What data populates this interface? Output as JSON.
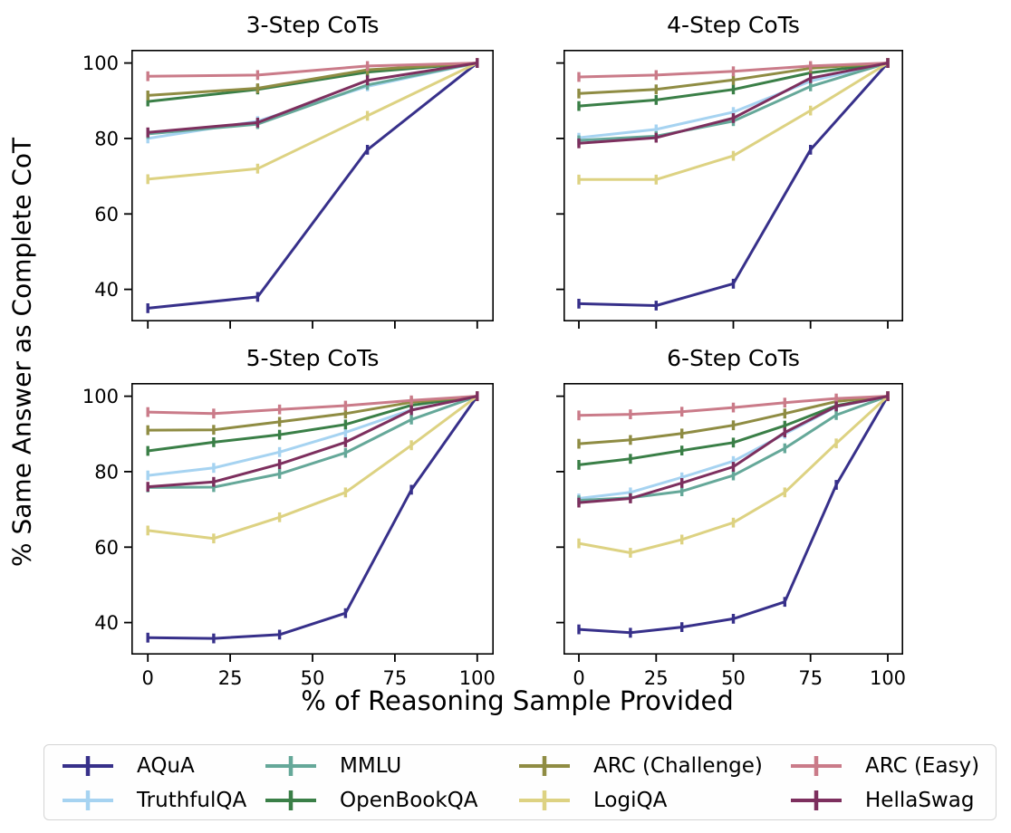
{
  "figure": {
    "ylabel": "% Same Answer as Complete CoT",
    "xlabel": "% of Reasoning Sample Provided",
    "background": "#ffffff",
    "text_color": "#000000",
    "spine_color": "#000000",
    "legend_border_color": "#d4d4d4"
  },
  "legend": {
    "position": "bottom",
    "entries": [
      {
        "label": "AQuA",
        "color": "#37308a"
      },
      {
        "label": "TruthfulQA",
        "color": "#a6d3f1"
      },
      {
        "label": "MMLU",
        "color": "#65a899"
      },
      {
        "label": "OpenBookQA",
        "color": "#3a7f47"
      },
      {
        "label": "ARC (Challenge)",
        "color": "#8f8c43"
      },
      {
        "label": "LogiQA",
        "color": "#ddd282"
      },
      {
        "label": "ARC (Easy)",
        "color": "#ca7b89"
      },
      {
        "label": "HellaSwag",
        "color": "#7d2f5e"
      }
    ],
    "columns": [
      [
        0,
        1
      ],
      [
        2,
        3
      ],
      [
        4,
        5
      ],
      [
        6,
        7
      ]
    ]
  },
  "chart_data": [
    {
      "type": "line",
      "title": "3-Step CoTs",
      "xlabel_shared": "% of Reasoning Sample Provided",
      "ylabel_shared": "% Same Answer as Complete CoT",
      "x": [
        0,
        33.33,
        66.67,
        100
      ],
      "xticks": [
        0,
        25,
        50,
        75,
        100
      ],
      "yticks": [
        40,
        60,
        80,
        100
      ],
      "xlim": [
        -5,
        105
      ],
      "ylim": [
        31.5,
        103.5
      ],
      "grid": false,
      "error_bar": 1.3,
      "series": [
        {
          "name": "AQuA",
          "values": [
            35.0,
            38.0,
            77.0,
            100
          ]
        },
        {
          "name": "TruthfulQA",
          "values": [
            80.0,
            84.6,
            93.8,
            100
          ]
        },
        {
          "name": "MMLU",
          "values": [
            81.2,
            83.8,
            94.2,
            100
          ]
        },
        {
          "name": "OpenBookQA",
          "values": [
            89.8,
            93.0,
            97.6,
            100
          ]
        },
        {
          "name": "ARC (Challenge)",
          "values": [
            91.4,
            93.3,
            98.2,
            100
          ]
        },
        {
          "name": "LogiQA",
          "values": [
            69.2,
            72.0,
            86.0,
            100
          ]
        },
        {
          "name": "ARC (Easy)",
          "values": [
            96.5,
            96.8,
            99.2,
            100
          ]
        },
        {
          "name": "HellaSwag",
          "values": [
            81.6,
            84.2,
            95.4,
            100
          ]
        }
      ]
    },
    {
      "type": "line",
      "title": "4-Step CoTs",
      "x": [
        0,
        25,
        50,
        75,
        100
      ],
      "xticks": [
        0,
        25,
        50,
        75,
        100
      ],
      "yticks": [
        40,
        60,
        80,
        100
      ],
      "xlim": [
        -5,
        105
      ],
      "ylim": [
        31.5,
        103.5
      ],
      "grid": false,
      "error_bar": 1.3,
      "series": [
        {
          "name": "AQuA",
          "values": [
            36.2,
            35.7,
            41.5,
            77.0,
            100
          ]
        },
        {
          "name": "TruthfulQA",
          "values": [
            80.2,
            82.4,
            87.0,
            95.2,
            100
          ]
        },
        {
          "name": "MMLU",
          "values": [
            79.5,
            80.6,
            84.6,
            93.8,
            100
          ]
        },
        {
          "name": "OpenBookQA",
          "values": [
            88.6,
            90.2,
            93.0,
            97.4,
            100
          ]
        },
        {
          "name": "ARC (Challenge)",
          "values": [
            91.9,
            93.0,
            95.5,
            98.6,
            100
          ]
        },
        {
          "name": "LogiQA",
          "values": [
            69.1,
            69.1,
            75.4,
            87.4,
            100
          ]
        },
        {
          "name": "ARC (Easy)",
          "values": [
            96.3,
            96.8,
            97.8,
            99.2,
            100
          ]
        },
        {
          "name": "HellaSwag",
          "values": [
            78.7,
            80.2,
            85.4,
            96.0,
            100
          ]
        }
      ]
    },
    {
      "type": "line",
      "title": "5-Step CoTs",
      "x": [
        0,
        20,
        40,
        60,
        80,
        100
      ],
      "xticks": [
        0,
        25,
        50,
        75,
        100
      ],
      "yticks": [
        40,
        60,
        80,
        100
      ],
      "xlim": [
        -5,
        105
      ],
      "ylim": [
        31.5,
        103.5
      ],
      "grid": false,
      "error_bar": 1.3,
      "series": [
        {
          "name": "AQuA",
          "values": [
            36.0,
            35.8,
            36.8,
            42.5,
            75.2,
            100
          ]
        },
        {
          "name": "TruthfulQA",
          "values": [
            79.0,
            81.0,
            85.2,
            90.4,
            96.4,
            100
          ]
        },
        {
          "name": "MMLU",
          "values": [
            75.8,
            75.9,
            79.4,
            85.0,
            93.8,
            100
          ]
        },
        {
          "name": "OpenBookQA",
          "values": [
            85.5,
            87.8,
            89.8,
            92.5,
            97.6,
            100
          ]
        },
        {
          "name": "ARC (Challenge)",
          "values": [
            91.0,
            91.1,
            93.2,
            95.4,
            98.4,
            100
          ]
        },
        {
          "name": "LogiQA",
          "values": [
            64.4,
            62.3,
            67.9,
            74.5,
            87.0,
            100
          ]
        },
        {
          "name": "ARC (Easy)",
          "values": [
            95.8,
            95.4,
            96.5,
            97.5,
            98.9,
            100
          ]
        },
        {
          "name": "HellaSwag",
          "values": [
            76.0,
            77.3,
            82.0,
            87.8,
            96.3,
            100
          ]
        }
      ]
    },
    {
      "type": "line",
      "title": "6-Step CoTs",
      "x": [
        0,
        16.67,
        33.33,
        50,
        66.67,
        83.33,
        100
      ],
      "xticks": [
        0,
        25,
        50,
        75,
        100
      ],
      "yticks": [
        40,
        60,
        80,
        100
      ],
      "xlim": [
        -5,
        105
      ],
      "ylim": [
        31.5,
        103.5
      ],
      "grid": false,
      "error_bar": 1.3,
      "series": [
        {
          "name": "AQuA",
          "values": [
            38.2,
            37.3,
            38.8,
            41.0,
            45.5,
            76.5,
            100
          ]
        },
        {
          "name": "TruthfulQA",
          "values": [
            72.9,
            74.5,
            78.5,
            82.8,
            90.0,
            97.2,
            100
          ]
        },
        {
          "name": "MMLU",
          "values": [
            72.4,
            73.1,
            74.8,
            79.0,
            86.2,
            95.0,
            100
          ]
        },
        {
          "name": "OpenBookQA",
          "values": [
            81.8,
            83.4,
            85.6,
            87.7,
            92.2,
            97.5,
            100
          ]
        },
        {
          "name": "ARC (Challenge)",
          "values": [
            87.4,
            88.4,
            90.1,
            92.3,
            95.4,
            98.6,
            100
          ]
        },
        {
          "name": "LogiQA",
          "values": [
            61.0,
            58.5,
            62.0,
            66.5,
            74.5,
            87.5,
            100
          ]
        },
        {
          "name": "ARC (Easy)",
          "values": [
            94.9,
            95.2,
            95.9,
            97.0,
            98.3,
            99.4,
            100
          ]
        },
        {
          "name": "HellaSwag",
          "values": [
            71.8,
            72.9,
            77.0,
            81.3,
            90.4,
            97.3,
            100
          ]
        }
      ]
    }
  ]
}
